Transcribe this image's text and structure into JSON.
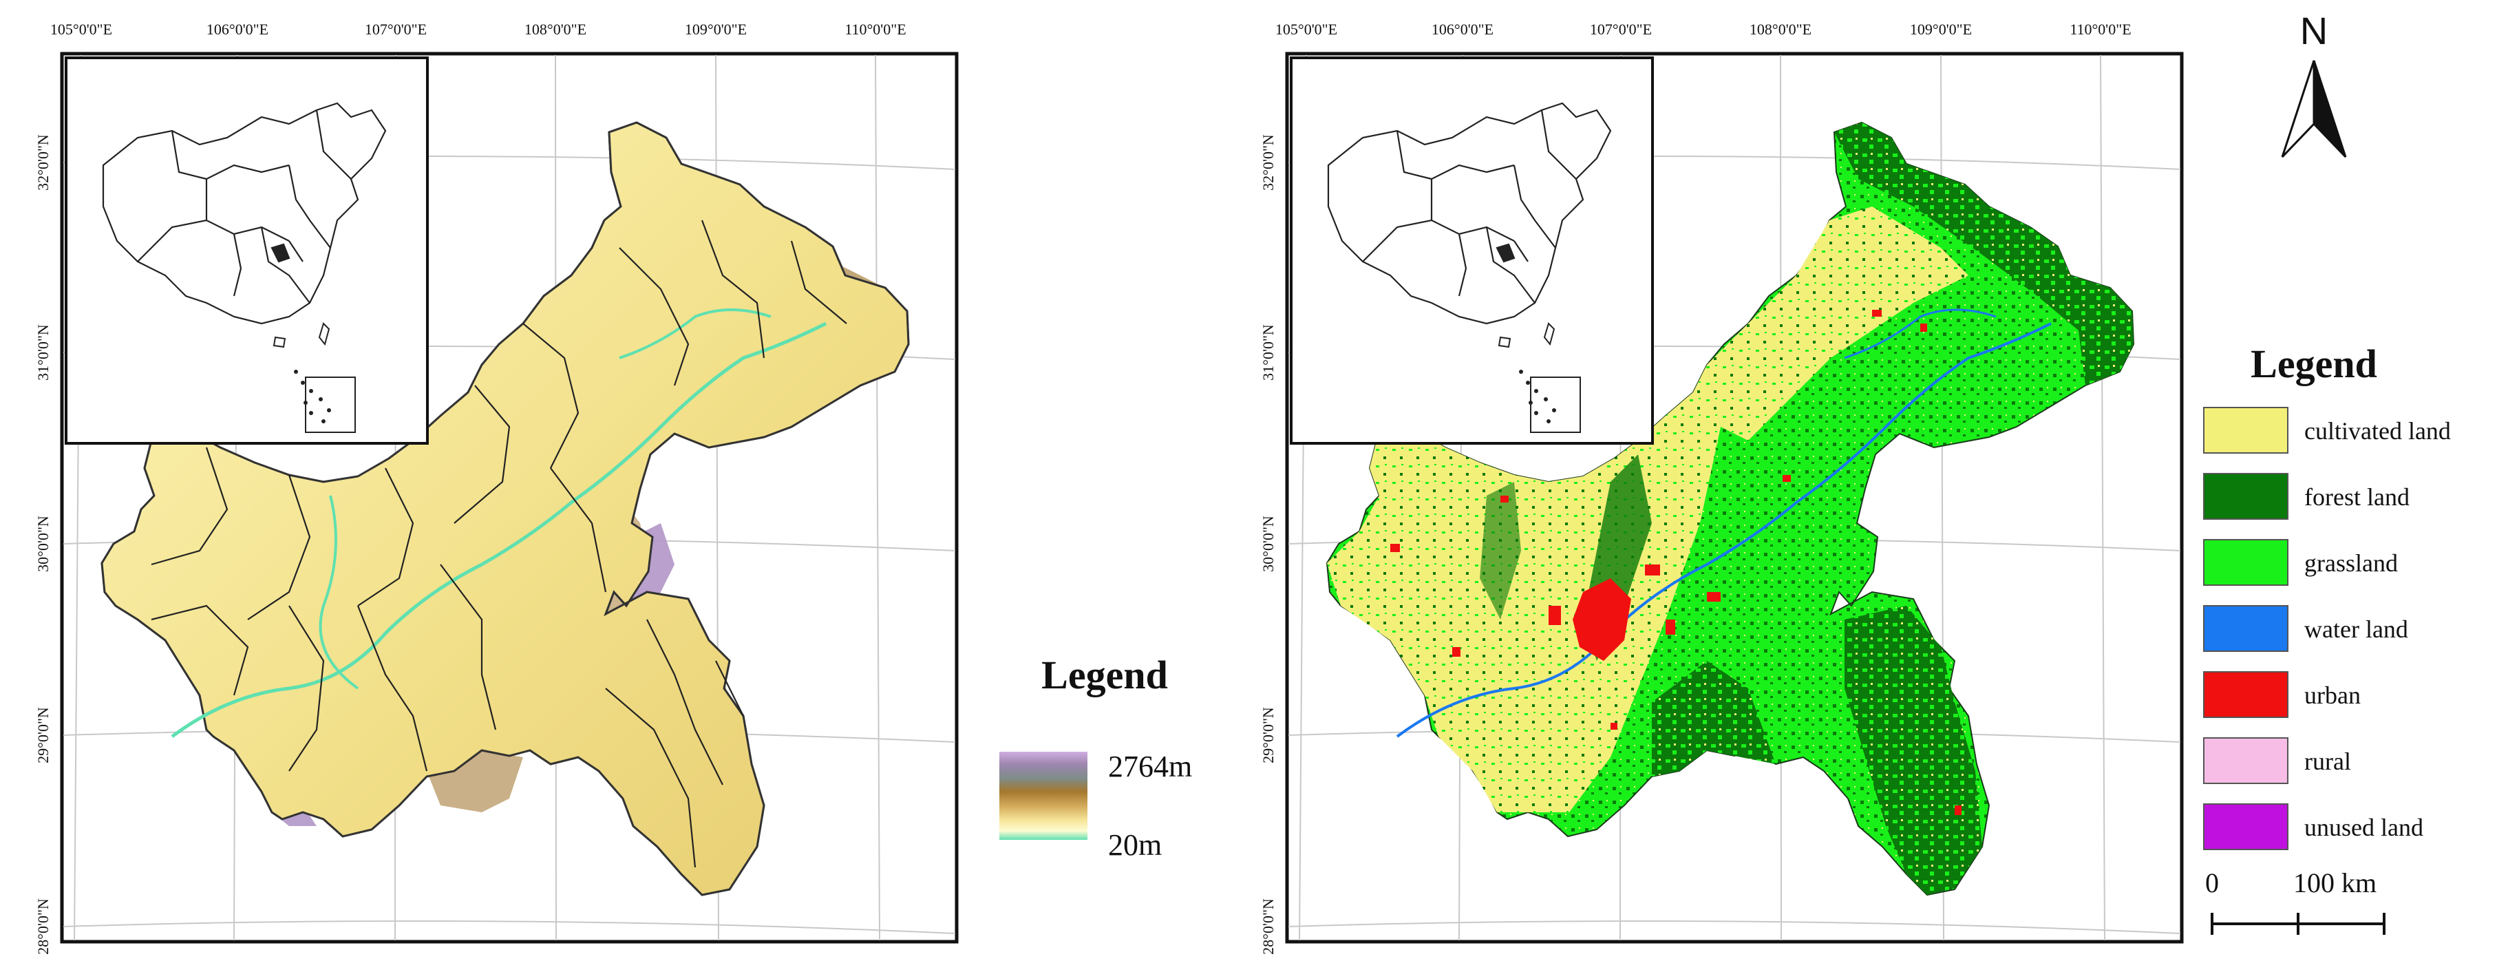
{
  "left_map": {
    "lon_labels": [
      "105°0'0\"E",
      "106°0'0\"E",
      "107°0'0\"E",
      "108°0'0\"E",
      "109°0'0\"E",
      "110°0'0\"E"
    ],
    "lat_labels": [
      "32°0'0\"N",
      "31°0'0\"N",
      "30°0'0\"N",
      "29°0'0\"N",
      "28°0'0\"N"
    ],
    "legend_title": "Legend",
    "elevation_max": "2764m",
    "elevation_min": "20m",
    "elevation_colors": [
      "#c9a6d6",
      "#9e7ea8",
      "#8e8770",
      "#a87a3a",
      "#caa35a",
      "#f2e08a",
      "#fdfac8",
      "#6fe0b0"
    ]
  },
  "right_map": {
    "lon_labels": [
      "105°0'0\"E",
      "106°0'0\"E",
      "107°0'0\"E",
      "108°0'0\"E",
      "109°0'0\"E",
      "110°0'0\"E"
    ],
    "lat_labels": [
      "32°0'0\"N",
      "31°0'0\"N",
      "30°0'0\"N",
      "29°0'0\"N",
      "28°0'0\"N"
    ],
    "north_label": "N",
    "legend_title": "Legend",
    "legend_items": [
      {
        "label": "cultivated land",
        "color": "#f3f07a"
      },
      {
        "label": "forest land",
        "color": "#0a7a0a"
      },
      {
        "label": "grassland",
        "color": "#19f019"
      },
      {
        "label": "water land",
        "color": "#1a78f0"
      },
      {
        "label": "urban",
        "color": "#f01010"
      },
      {
        "label": "rural",
        "color": "#f7bde6"
      },
      {
        "label": "unused land",
        "color": "#c010e0"
      }
    ],
    "scale_start": "0",
    "scale_end": "100 km"
  }
}
